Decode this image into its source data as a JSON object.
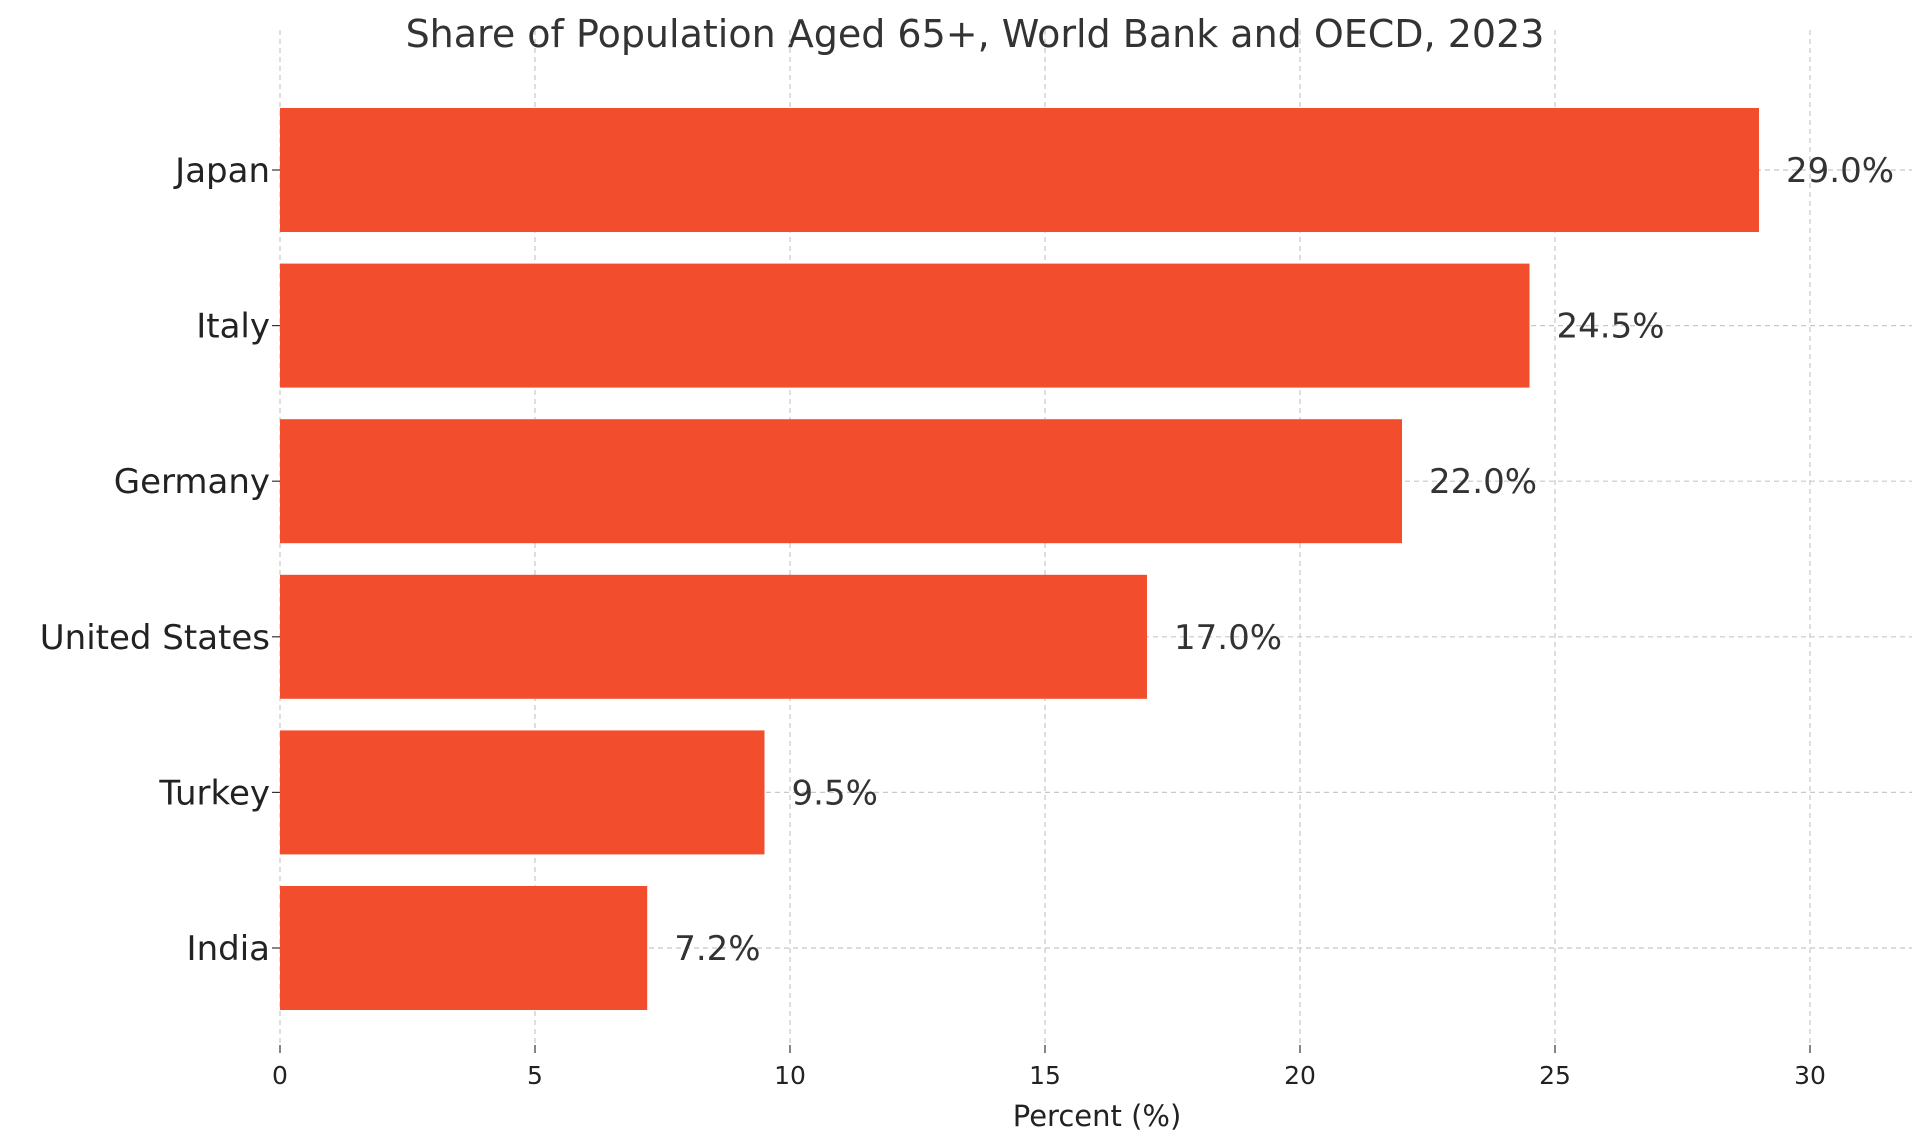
{
  "chart_data": {
    "type": "bar",
    "orientation": "horizontal",
    "title": "Share of Population Aged 65+, World Bank and OECD, 2023",
    "xlabel": "Percent (%)",
    "ylabel": "",
    "categories": [
      "Japan",
      "Italy",
      "Germany",
      "United States",
      "Turkey",
      "India"
    ],
    "values": [
      29.0,
      24.5,
      22.0,
      17.0,
      9.5,
      7.2
    ],
    "data_labels": [
      "29.0%",
      "24.5%",
      "22.0%",
      "17.0%",
      "9.5%",
      "7.2%"
    ],
    "xlim": [
      0,
      32
    ],
    "xticks": [
      0,
      5,
      10,
      15,
      20,
      25,
      30
    ],
    "xtick_labels": [
      "0",
      "5",
      "10",
      "15",
      "20",
      "25",
      "30"
    ],
    "grid": true,
    "bar_color": "#f24e2e"
  }
}
